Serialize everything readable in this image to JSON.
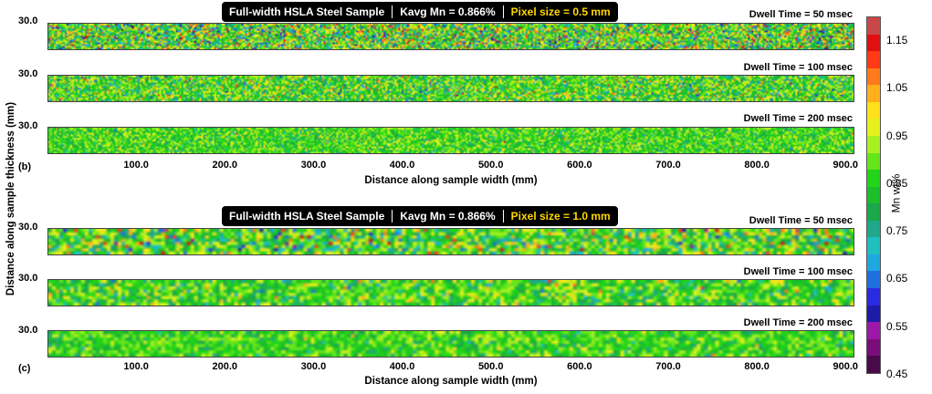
{
  "chart_data": [
    {
      "type": "heatmap",
      "panel_label": "(b)",
      "header": {
        "sample": "Full-width HSLA Steel Sample",
        "kavg": "Kavg Mn = 0.866%",
        "pixel": "Pixel size = 0.5 mm"
      },
      "xlabel": "Distance along sample width (mm)",
      "x_ticks": [
        "100.0",
        "200.0",
        "300.0",
        "400.0",
        "500.0",
        "600.0",
        "700.0",
        "800.0",
        "900.0"
      ],
      "xlim": [
        0,
        910
      ],
      "strips": [
        {
          "dwell_label": "Dwell Time = 50 msec",
          "y_tick": "30.0",
          "dwell_ms": 50,
          "spread": 0.135
        },
        {
          "dwell_label": "Dwell Time = 100 msec",
          "y_tick": "30.0",
          "dwell_ms": 100,
          "spread": 0.095
        },
        {
          "dwell_label": "Dwell Time = 200 msec",
          "y_tick": "30.0",
          "dwell_ms": 200,
          "spread": 0.065
        }
      ]
    },
    {
      "type": "heatmap",
      "panel_label": "(c)",
      "header": {
        "sample": "Full-width HSLA Steel Sample",
        "kavg": "Kavg Mn = 0.866%",
        "pixel": "Pixel size = 1.0 mm"
      },
      "xlabel": "Distance along sample width (mm)",
      "x_ticks": [
        "100.0",
        "200.0",
        "300.0",
        "400.0",
        "500.0",
        "600.0",
        "700.0",
        "800.0",
        "900.0"
      ],
      "xlim": [
        0,
        910
      ],
      "strips": [
        {
          "dwell_label": "Dwell Time = 50 msec",
          "y_tick": "30.0",
          "dwell_ms": 50,
          "spread": 0.11
        },
        {
          "dwell_label": "Dwell Time = 100 msec",
          "y_tick": "30.0",
          "dwell_ms": 100,
          "spread": 0.075
        },
        {
          "dwell_label": "Dwell Time = 200 msec",
          "y_tick": "30.0",
          "dwell_ms": 200,
          "spread": 0.055
        }
      ]
    }
  ],
  "y_axis_title": "Distance along sample thickness (mm)",
  "colorbar": {
    "title": "Mn wt%",
    "min": 0.45,
    "max": 1.2,
    "tick_labels": [
      "1.15",
      "1.05",
      "0.95",
      "0.85",
      "0.75",
      "0.65",
      "0.55",
      "0.45"
    ],
    "colors": [
      "#4a0a4a",
      "#7a0d7a",
      "#9c18a8",
      "#1c1ca8",
      "#2a2ae0",
      "#1f6fe0",
      "#1fa8e0",
      "#1fc0c0",
      "#1fa88a",
      "#1aa84a",
      "#1bbf2a",
      "#22d41a",
      "#66e61a",
      "#a8f020",
      "#e6f01a",
      "#ffe01a",
      "#ffb01a",
      "#ff7a1a",
      "#ff3a14",
      "#e01010",
      "#c84848"
    ],
    "mean": 0.866
  }
}
